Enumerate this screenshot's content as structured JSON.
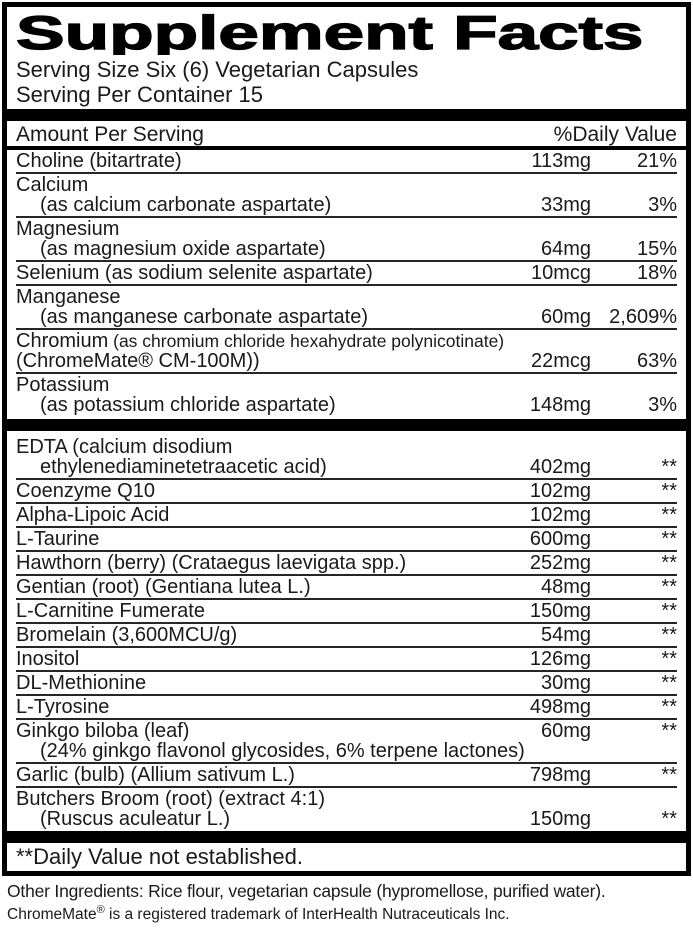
{
  "label": {
    "title": "Supplement Facts",
    "serving_size": "Serving Size Six (6) Vegetarian Capsules",
    "servings_per_container": "Serving Per Container 15",
    "column_headers": {
      "amount": "Amount Per Serving",
      "daily_value": "%Daily Value"
    },
    "footnote": "**Daily Value not established."
  },
  "sections": [
    {
      "name": "vitamins-and-minerals",
      "rows": [
        {
          "lines": [
            {
              "text": "Choline (bitartrate)",
              "amount": "113mg",
              "dv": "21%"
            }
          ]
        },
        {
          "lines": [
            {
              "text": "Calcium"
            },
            {
              "text": "(as calcium carbonate aspartate)",
              "indent": true,
              "amount": "33mg",
              "dv": "3%"
            }
          ]
        },
        {
          "lines": [
            {
              "text": "Magnesium"
            },
            {
              "text": "(as magnesium oxide aspartate)",
              "indent": true,
              "amount": "64mg",
              "dv": "15%"
            }
          ]
        },
        {
          "lines": [
            {
              "text": "Selenium (as sodium selenite aspartate)",
              "amount": "10mcg",
              "dv": "18%"
            }
          ]
        },
        {
          "lines": [
            {
              "text": "Manganese"
            },
            {
              "text": "(as manganese carbonate aspartate)",
              "indent": true,
              "amount": "60mg",
              "dv": "2,609%"
            }
          ]
        },
        {
          "lines": [
            {
              "text": "Chromium",
              "text_small": " (as chromium chloride hexahydrate polynicotinate)"
            },
            {
              "text": "(ChromeMate® CM-100M))",
              "amount": "22mcg",
              "dv": "63%"
            }
          ]
        },
        {
          "lines": [
            {
              "text": "Potassium"
            },
            {
              "text": "(as potassium chloride aspartate)",
              "indent": true,
              "amount": "148mg",
              "dv": "3%"
            }
          ]
        }
      ]
    },
    {
      "name": "other-ingredients-blend",
      "rows": [
        {
          "lines": [
            {
              "text": "EDTA (calcium disodium"
            },
            {
              "text": "ethylenediaminetetraacetic acid)",
              "indent": true,
              "amount": "402mg",
              "dv": "**"
            }
          ]
        },
        {
          "lines": [
            {
              "text": "Coenzyme Q10",
              "amount": "102mg",
              "dv": "**"
            }
          ]
        },
        {
          "lines": [
            {
              "text": "Alpha-Lipoic Acid",
              "amount": "102mg",
              "dv": "**"
            }
          ]
        },
        {
          "lines": [
            {
              "text": "L-Taurine",
              "amount": "600mg",
              "dv": "**"
            }
          ]
        },
        {
          "lines": [
            {
              "text": "Hawthorn (berry) (Crataegus laevigata spp.)",
              "amount": "252mg",
              "dv": "**"
            }
          ]
        },
        {
          "lines": [
            {
              "text": "Gentian (root) (Gentiana lutea L.)",
              "amount": "48mg",
              "dv": "**"
            }
          ]
        },
        {
          "lines": [
            {
              "text": "L-Carnitine Fumerate",
              "amount": "150mg",
              "dv": "**"
            }
          ]
        },
        {
          "lines": [
            {
              "text": "Bromelain (3,600MCU/g)",
              "amount": "54mg",
              "dv": "**"
            }
          ]
        },
        {
          "lines": [
            {
              "text": "Inositol",
              "amount": "126mg",
              "dv": "**"
            }
          ]
        },
        {
          "lines": [
            {
              "text": "DL-Methionine",
              "amount": "30mg",
              "dv": "**"
            }
          ]
        },
        {
          "lines": [
            {
              "text": "L-Tyrosine",
              "amount": "498mg",
              "dv": "**"
            }
          ]
        },
        {
          "lines": [
            {
              "text": "Ginkgo biloba (leaf)",
              "amount": "60mg",
              "dv": "**"
            },
            {
              "text": "(24% ginkgo flavonol glycosides, 6% terpene lactones)",
              "indent": true
            }
          ]
        },
        {
          "lines": [
            {
              "text": "Garlic (bulb) (Allium sativum L.)",
              "amount": "798mg",
              "dv": "**"
            }
          ]
        },
        {
          "lines": [
            {
              "text": "Butchers Broom (root) (extract 4:1)"
            },
            {
              "text": "(Ruscus aculeatur L.)",
              "indent": true,
              "amount": "150mg",
              "dv": "**"
            }
          ]
        }
      ]
    }
  ],
  "footer": {
    "other_ingredients": "Other Ingredients: Rice flour, vegetarian capsule (hypromellose, purified water).",
    "trademark_name": "ChromeMate",
    "trademark_reg": "®",
    "trademark_rest": " is a registered trademark of InterHealth Nutraceuticals Inc."
  },
  "colors": {
    "ink": "#1a1a1a",
    "bar": "#000000",
    "background": "#ffffff"
  }
}
